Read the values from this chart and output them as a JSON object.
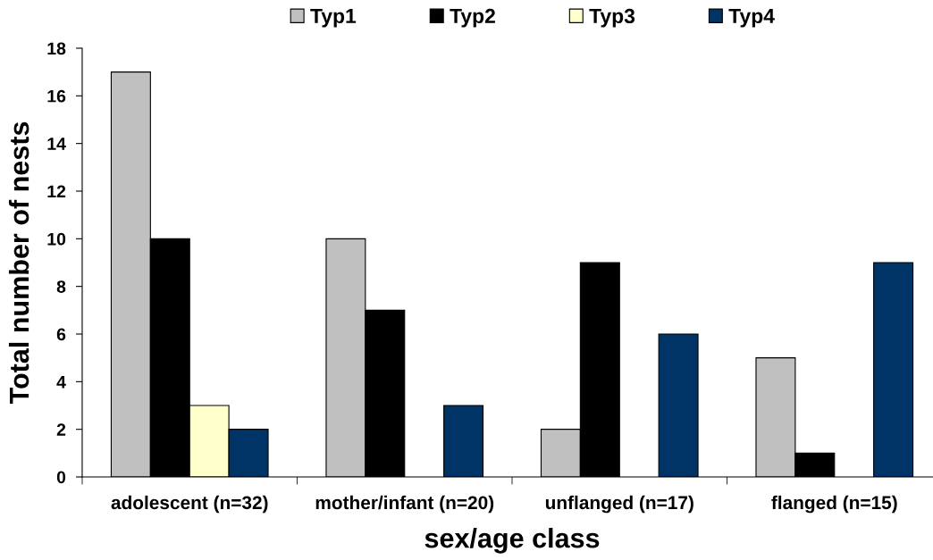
{
  "chart_data": {
    "type": "bar",
    "categories": [
      "adolescent (n=32)",
      "mother/infant (n=20)",
      "unflanged (n=17)",
      "flanged (n=15)"
    ],
    "xlabel": "sex/age class",
    "ylabel": "Total number of nests",
    "series": [
      {
        "name": "Typ1",
        "color": "#c0c0c0",
        "values": [
          17,
          10,
          2,
          5
        ]
      },
      {
        "name": "Typ2",
        "color": "#000000",
        "values": [
          10,
          7,
          9,
          1
        ]
      },
      {
        "name": "Typ3",
        "color": "#ffffcc",
        "values": [
          3,
          0,
          0,
          0
        ]
      },
      {
        "name": "Typ4",
        "color": "#003366",
        "values": [
          2,
          3,
          6,
          9
        ]
      }
    ],
    "ylim": [
      0,
      18
    ],
    "yticks": [
      0,
      2,
      4,
      6,
      8,
      10,
      12,
      14,
      16,
      18
    ],
    "grid": false,
    "legend": "top"
  }
}
